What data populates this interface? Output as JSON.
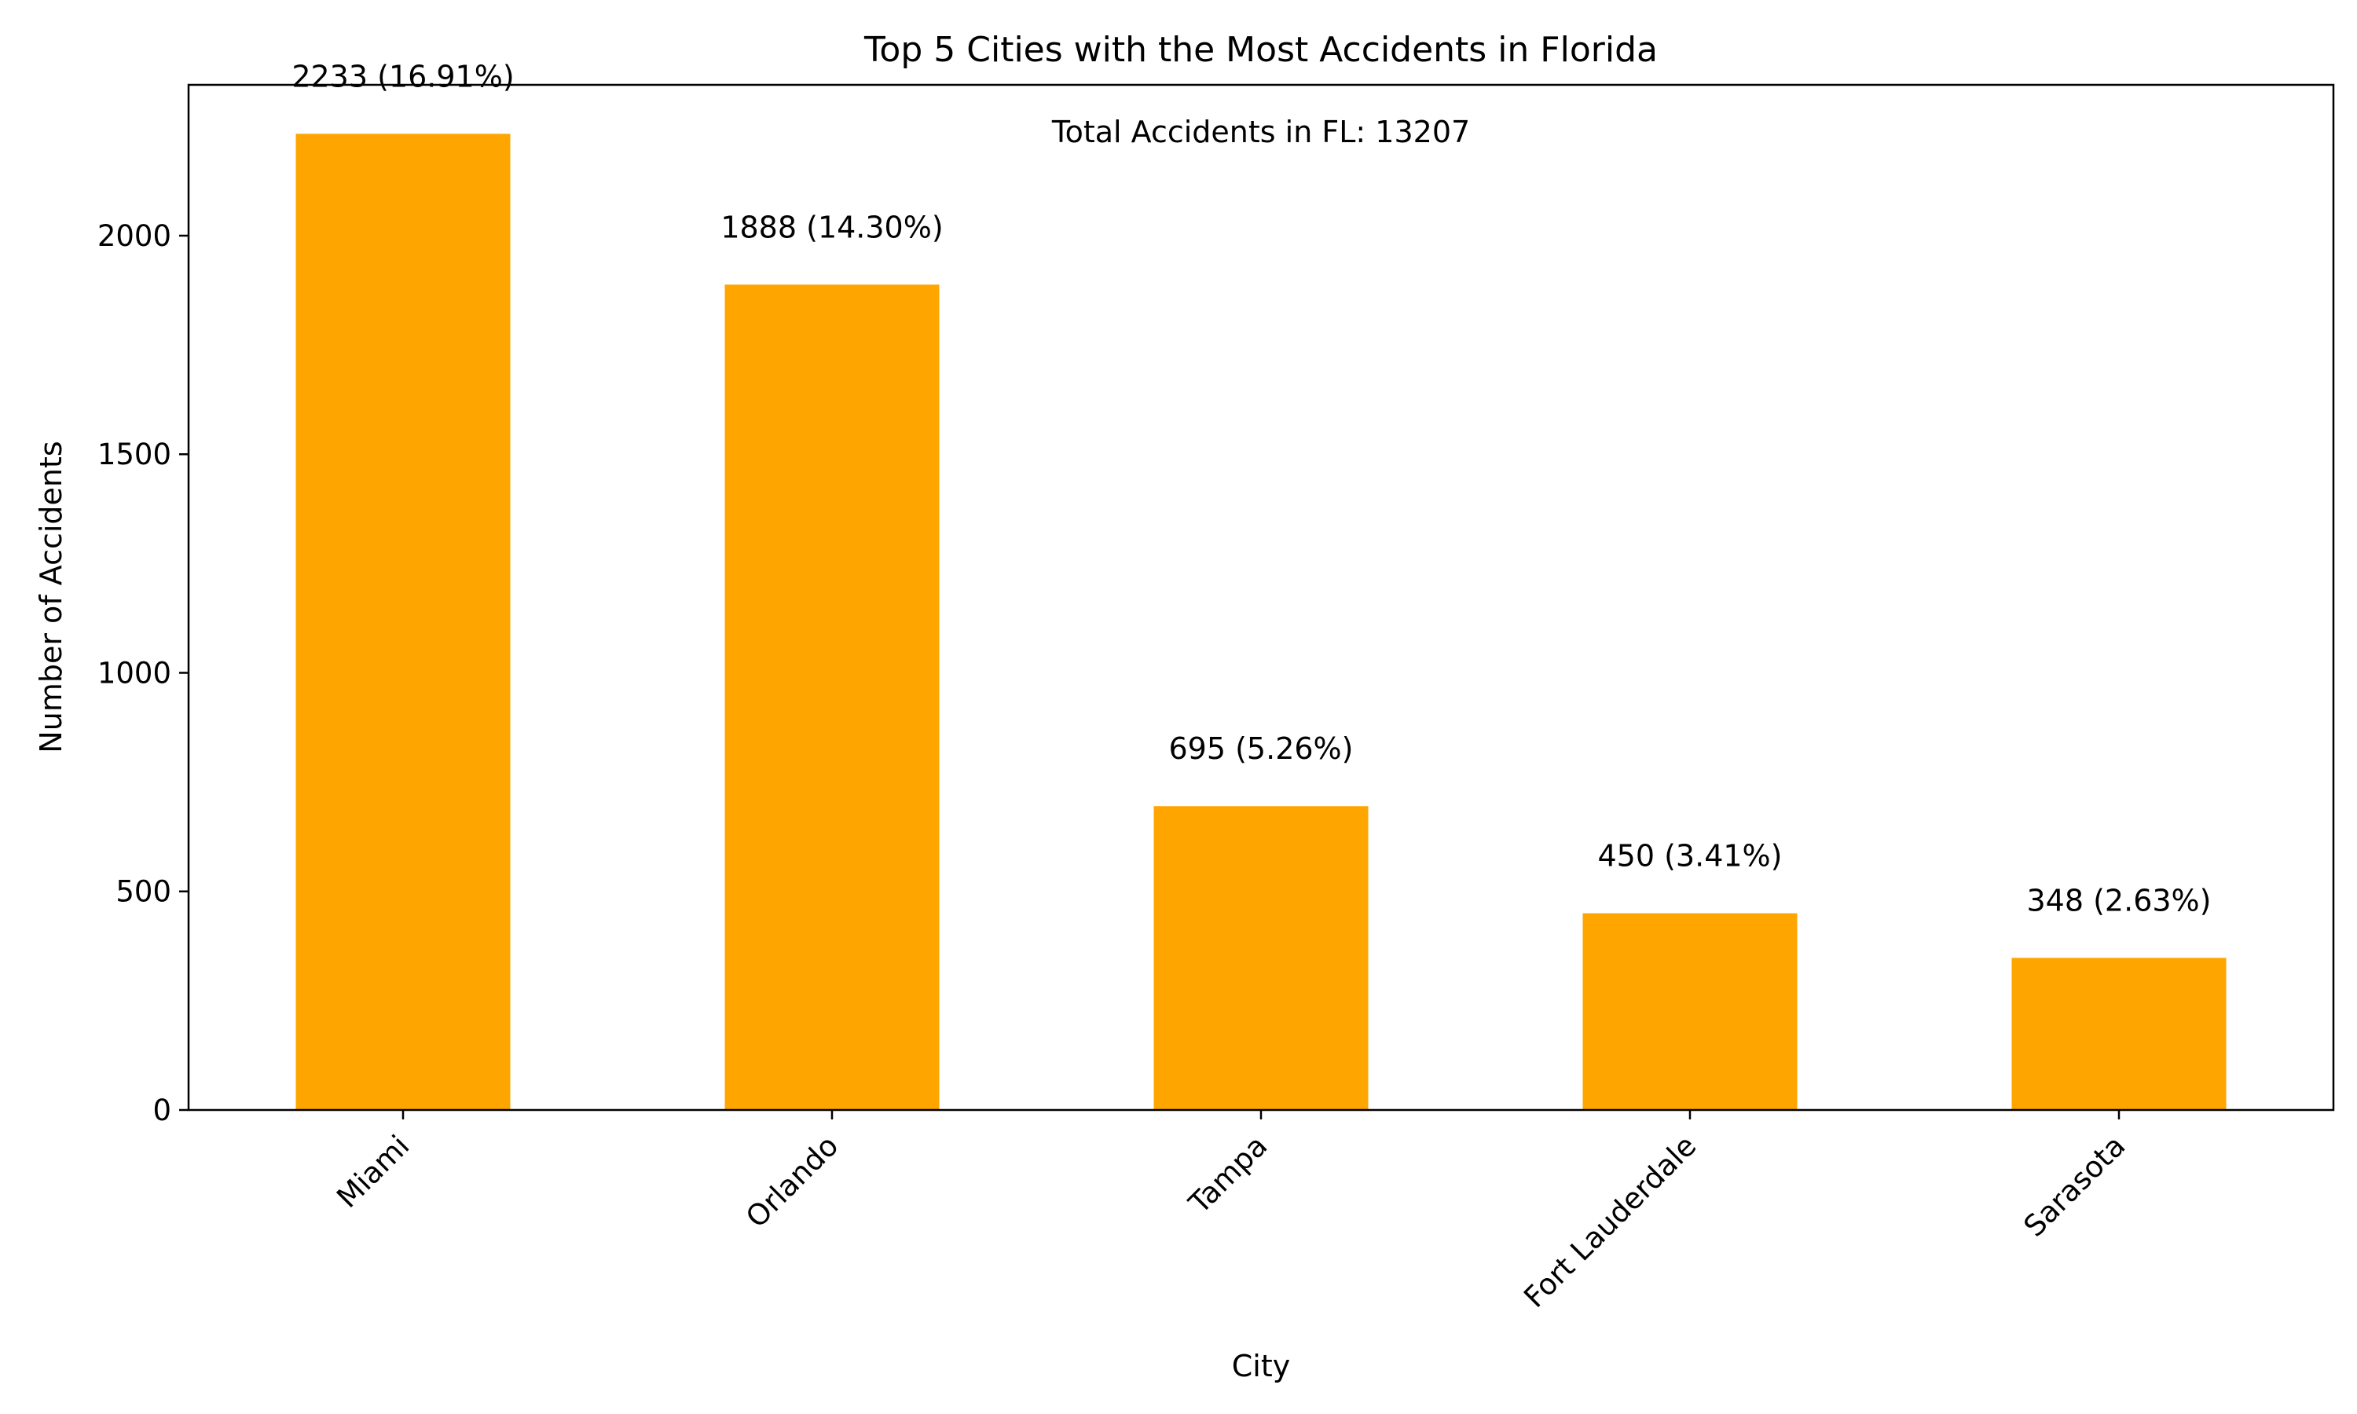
{
  "chart_data": {
    "type": "bar",
    "title": "Top 5 Cities with the Most Accidents in Florida",
    "xlabel": "City",
    "ylabel": "Number of Accidents",
    "categories": [
      "Miami",
      "Orlando",
      "Tampa",
      "Fort Lauderdale",
      "Sarasota"
    ],
    "values": [
      2233,
      1888,
      695,
      450,
      348
    ],
    "data_labels": [
      "2233 (16.91%)",
      "1888 (14.30%)",
      "695 (5.26%)",
      "450 (3.41%)",
      "348 (2.63%)"
    ],
    "yticks": [
      0,
      500,
      1000,
      1500,
      2000
    ],
    "ylim": [
      0,
      2345
    ],
    "annotation": "Total Accidents in FL: 13207",
    "bar_color": "#FFA500",
    "grid": false,
    "legend": "none"
  }
}
